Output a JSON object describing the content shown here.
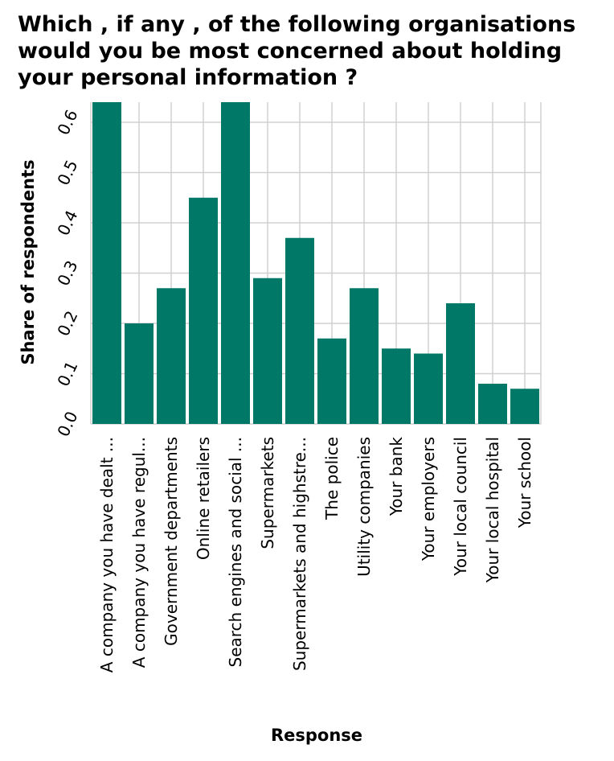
{
  "chart_data": {
    "type": "bar",
    "title": "Which , if any , of the following organisations\nwould you be most concerned about holding\nyour personal information ?",
    "xlabel": "Response",
    "ylabel": "Share of respondents",
    "categories": [
      "A company you have dealt ...",
      "A company you have regul...",
      "Government departments",
      "Online retailers",
      "Search engines and social ...",
      "Supermarkets",
      "Supermarkets and highstre...",
      "The police",
      "Utility companies",
      "Your bank",
      "Your employers",
      "Your local council",
      "Your local hospital",
      "Your school"
    ],
    "values": [
      0.64,
      0.2,
      0.27,
      0.45,
      0.64,
      0.29,
      0.37,
      0.17,
      0.27,
      0.15,
      0.14,
      0.24,
      0.08,
      0.07
    ],
    "ylim": [
      0,
      0.64
    ],
    "yticks": [
      "0.0",
      "0.1",
      "0.2",
      "0.3",
      "0.4",
      "0.5",
      "0.6"
    ],
    "grid": true,
    "bar_color": "#007868",
    "grid_color": "#d0d0d0"
  }
}
